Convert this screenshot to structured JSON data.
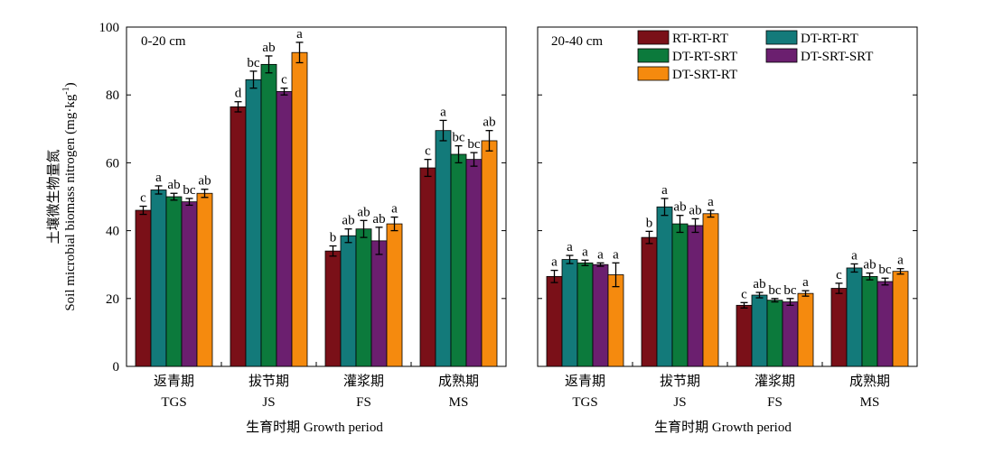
{
  "chart_data": [
    {
      "type": "bar",
      "panel_label": "0-20 cm",
      "categories_cn": [
        "返青期",
        "拔节期",
        "灌浆期",
        "成熟期"
      ],
      "categories": [
        "TGS",
        "JS",
        "FS",
        "MS"
      ],
      "xlabel": "生育时期 Growth period",
      "ylabel_cn": "土壤微生物量氮",
      "ylabel": "Soil microbial biomass nitrogen (mg·kg",
      "ylabel_sup": "-1",
      "ylabel_close": ")",
      "ylim": [
        0,
        100
      ],
      "yticks": [
        0,
        20,
        40,
        60,
        80,
        100
      ],
      "series": [
        {
          "name": "RT-RT-RT",
          "values": [
            46,
            76.5,
            34,
            58.5
          ],
          "errors": [
            1.2,
            1.5,
            1.5,
            2.5
          ],
          "letters": [
            "c",
            "d",
            "b",
            "c"
          ]
        },
        {
          "name": "DT-RT-RT",
          "values": [
            52,
            84.5,
            38.5,
            69.5
          ],
          "errors": [
            1.2,
            2.5,
            2,
            3
          ],
          "letters": [
            "a",
            "bc",
            "ab",
            "a"
          ]
        },
        {
          "name": "DT-RT-SRT",
          "values": [
            50,
            89,
            40.5,
            62.5
          ],
          "errors": [
            1,
            2.5,
            2.5,
            2.5
          ],
          "letters": [
            "ab",
            "ab",
            "ab",
            "bc"
          ]
        },
        {
          "name": "DT-SRT-SRT",
          "values": [
            48.5,
            81,
            37,
            61
          ],
          "errors": [
            1,
            1,
            4,
            2
          ],
          "letters": [
            "bc",
            "c",
            "ab",
            "bc"
          ]
        },
        {
          "name": "DT-SRT-RT",
          "values": [
            51,
            92.5,
            42,
            66.5
          ],
          "errors": [
            1.2,
            3,
            2,
            3
          ],
          "letters": [
            "ab",
            "a",
            "a",
            "ab"
          ]
        }
      ]
    },
    {
      "type": "bar",
      "panel_label": "20-40 cm",
      "categories_cn": [
        "返青期",
        "拔节期",
        "灌浆期",
        "成熟期"
      ],
      "categories": [
        "TGS",
        "JS",
        "FS",
        "MS"
      ],
      "xlabel": "生育时期 Growth period",
      "ylim": [
        0,
        100
      ],
      "legend_position": "top-right",
      "series": [
        {
          "name": "RT-RT-RT",
          "values": [
            26.5,
            38,
            18,
            23
          ],
          "errors": [
            1.8,
            1.8,
            0.8,
            1.5
          ],
          "letters": [
            "a",
            "b",
            "c",
            "c"
          ]
        },
        {
          "name": "DT-RT-RT",
          "values": [
            31.5,
            47,
            21,
            29
          ],
          "errors": [
            1.2,
            2.5,
            0.8,
            1.2
          ],
          "letters": [
            "a",
            "a",
            "ab",
            "a"
          ]
        },
        {
          "name": "DT-RT-SRT",
          "values": [
            30.5,
            42,
            19.5,
            26.5
          ],
          "errors": [
            0.8,
            2.5,
            0.5,
            1
          ],
          "letters": [
            "a",
            "ab",
            "bc",
            "ab"
          ]
        },
        {
          "name": "DT-SRT-SRT",
          "values": [
            30,
            41.5,
            19,
            25
          ],
          "errors": [
            0.5,
            2,
            1,
            1
          ],
          "letters": [
            "a",
            "ab",
            "bc",
            "bc"
          ]
        },
        {
          "name": "DT-SRT-RT",
          "values": [
            27,
            45,
            21.5,
            28
          ],
          "errors": [
            3.5,
            1,
            0.8,
            0.8
          ],
          "letters": [
            "a",
            "a",
            "a",
            "a"
          ]
        }
      ]
    }
  ],
  "colors": [
    "#7a1018",
    "#137a7a",
    "#0c7a3c",
    "#6b1f6f",
    "#f58a0e"
  ],
  "legend_labels": [
    "RT-RT-RT",
    "DT-RT-RT",
    "DT-RT-SRT",
    "DT-SRT-SRT",
    "DT-SRT-RT"
  ]
}
